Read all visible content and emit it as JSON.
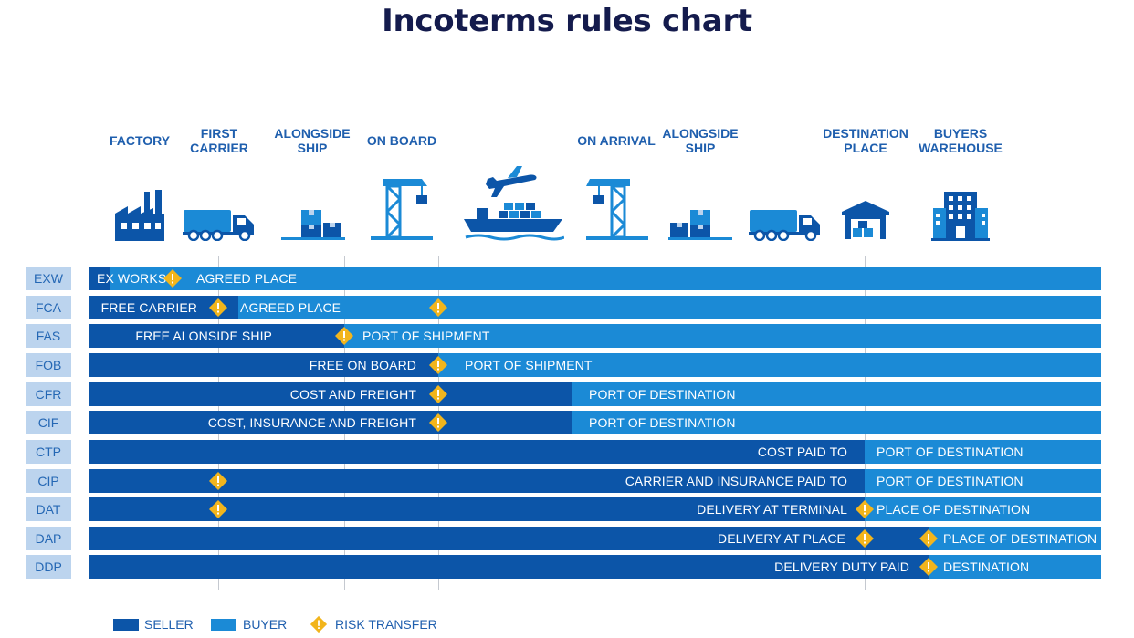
{
  "title": "Incoterms rules chart",
  "stages": [
    {
      "name": "FACTORY",
      "line2": ""
    },
    {
      "name": "FIRST",
      "line2": "CARRIER"
    },
    {
      "name": "ALONGSIDE",
      "line2": "SHIP"
    },
    {
      "name": "ON BOARD",
      "line2": ""
    },
    {
      "name": "ON ARRIVAL",
      "line2": ""
    },
    {
      "name": "ALONGSIDE",
      "line2": "SHIP"
    },
    {
      "name": "DESTINATION",
      "line2": "PLACE"
    },
    {
      "name": "BUYERS",
      "line2": "WAREHOUSE"
    }
  ],
  "icons": [
    "factory-icon",
    "truck-icon",
    "boxes-icon",
    "crane-icon",
    "airplane-icon",
    "cargo-ship-icon",
    "crane-icon",
    "boxes-icon",
    "truck-icon",
    "warehouse-icon",
    "office-building-icon"
  ],
  "rows": [
    {
      "code": "EXW",
      "seller_label": "EX WORKS",
      "buyer_label": "AGREED PLACE"
    },
    {
      "code": "FCA",
      "seller_label": "FREE CARRIER",
      "buyer_label": "AGREED PLACE"
    },
    {
      "code": "FAS",
      "seller_label": "FREE ALONSIDE SHIP",
      "buyer_label": "PORT OF SHIPMENT"
    },
    {
      "code": "FOB",
      "seller_label": "FREE ON BOARD",
      "buyer_label": "PORT OF SHIPMENT"
    },
    {
      "code": "CFR",
      "seller_label": "COST AND FREIGHT",
      "buyer_label": "PORT OF DESTINATION"
    },
    {
      "code": "CIF",
      "seller_label": "COST, INSURANCE AND FREIGHT",
      "buyer_label": "PORT OF DESTINATION"
    },
    {
      "code": "CTP",
      "seller_label": "COST PAID TO",
      "buyer_label": "PORT OF DESTINATION"
    },
    {
      "code": "CIP",
      "seller_label": "CARRIER AND INSURANCE PAID TO",
      "buyer_label": "PORT OF DESTINATION"
    },
    {
      "code": "DAT",
      "seller_label": "DELIVERY AT TERMINAL",
      "buyer_label": "PLACE OF DESTINATION"
    },
    {
      "code": "DAP",
      "seller_label": "DELIVERY AT PLACE",
      "buyer_label": "PLACE OF DESTINATION"
    },
    {
      "code": "DDP",
      "seller_label": "DELIVERY DUTY PAID",
      "buyer_label": "DESTINATION"
    }
  ],
  "legend": {
    "seller": "SELLER",
    "buyer": "BUYER",
    "risk": "RISK TRANSFER"
  },
  "colors": {
    "seller": "#0c55a8",
    "buyer": "#1b8ad6",
    "risk": "#f2b51c",
    "code_bg": "#bcd4ee",
    "title": "#141b4d",
    "stage_text": "#1f5fae"
  }
}
